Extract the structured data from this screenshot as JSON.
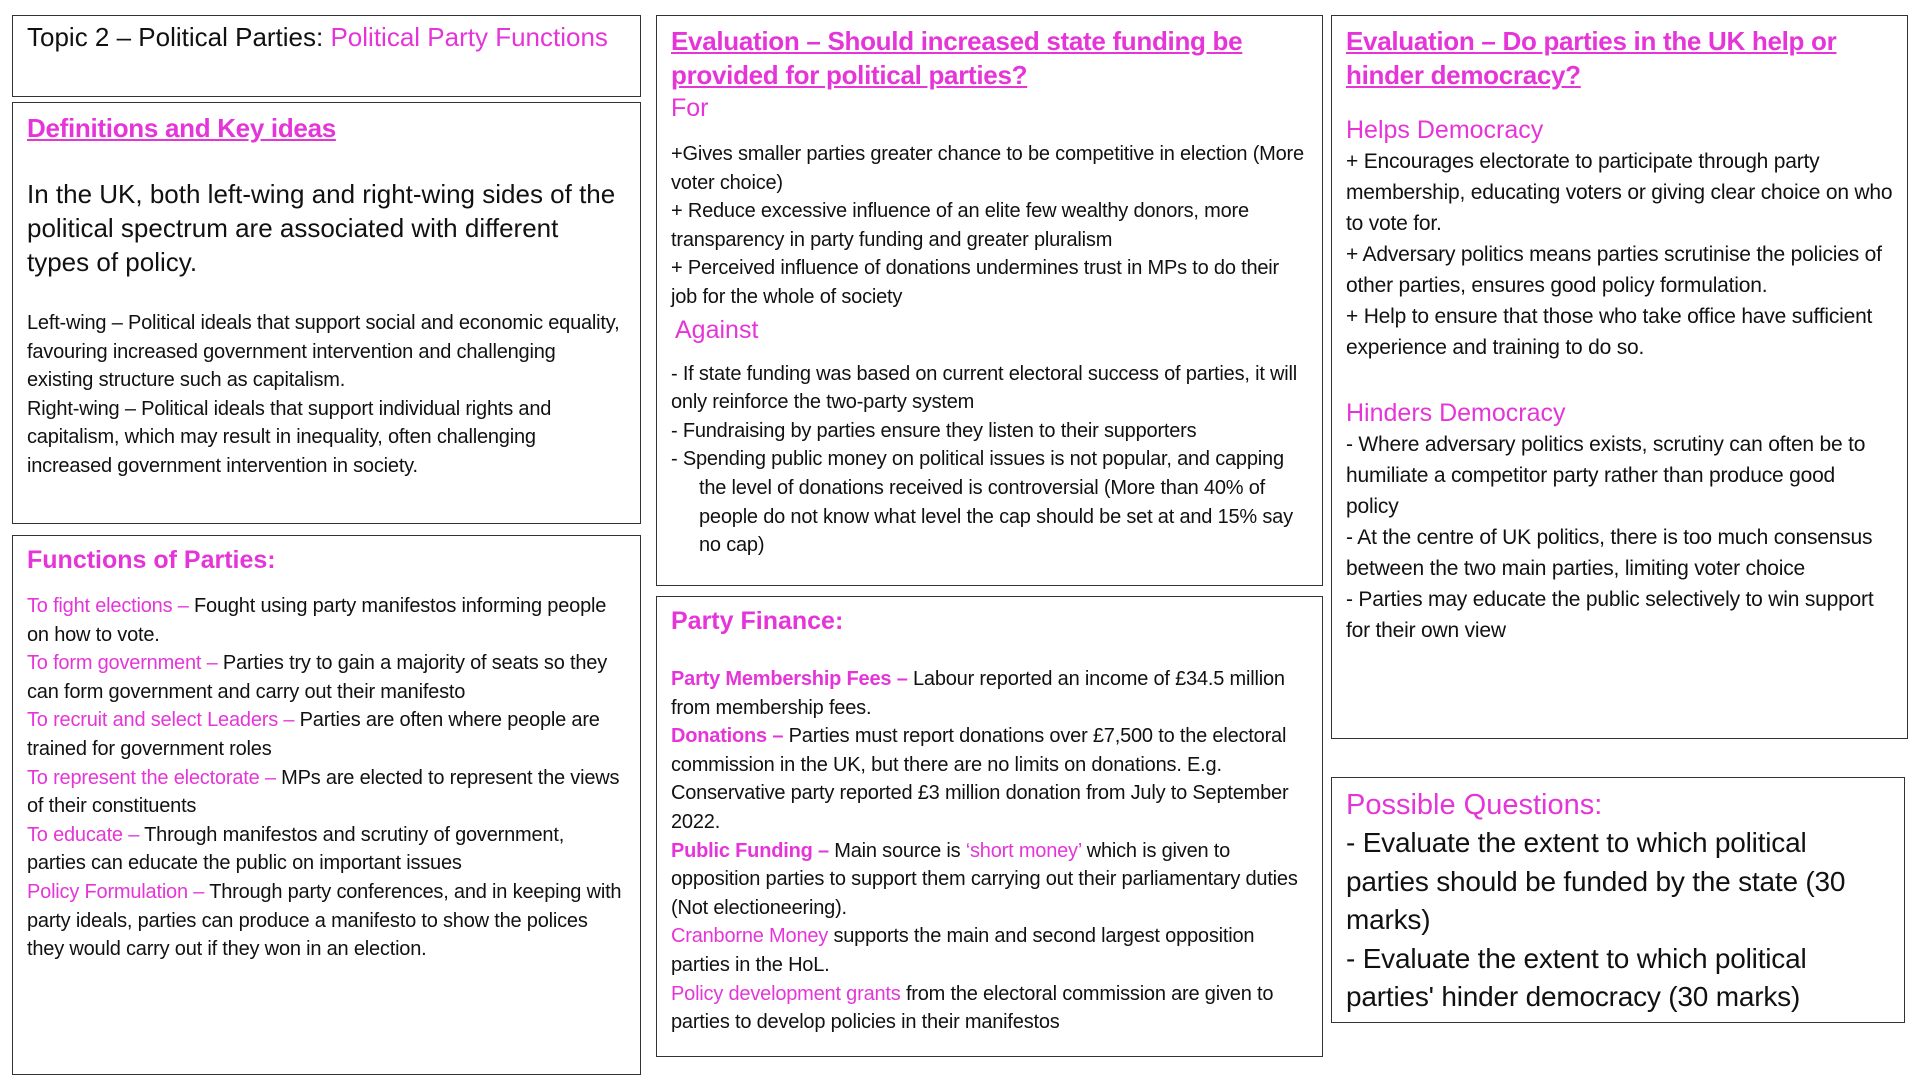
{
  "title": {
    "prefix": "Topic 2 – Political Parties: ",
    "highlight": "Political Party Functions"
  },
  "definitions": {
    "heading": "Definitions and Key ideas",
    "intro": "In the UK, both left-wing and right-wing sides of the political spectrum are associated with different types of policy.",
    "left": "Left-wing – Political ideals that support social and economic equality, favouring increased government intervention and challenging existing structure such as capitalism.",
    "right": "Right-wing – Political ideals that support individual rights and capitalism, which may result in inequality, often challenging increased government intervention in society."
  },
  "functions": {
    "heading": "Functions of Parties:",
    "items": [
      {
        "label": "To fight elections – ",
        "text": "Fought using party manifestos informing people on how to vote."
      },
      {
        "label": "To form government – ",
        "text": "Parties try to gain a majority of seats so they can form government and carry out their manifesto"
      },
      {
        "label": "To recruit and select Leaders – ",
        "text": "Parties are often where people are trained for government roles"
      },
      {
        "label": "To represent the electorate – ",
        "text": "MPs are elected to represent the views of their constituents"
      },
      {
        "label": "To educate – ",
        "text": "Through manifestos and scrutiny of government, parties can educate the public on important issues"
      },
      {
        "label": "Policy Formulation – ",
        "text": "Through party conferences, and in keeping with party ideals, parties can produce a manifesto to show the polices they would carry out if they won in an election."
      }
    ]
  },
  "funding": {
    "heading": "Evaluation – Should increased state funding be provided for political parties?",
    "for_label": "For",
    "for": [
      "+Gives smaller parties greater chance to be competitive in election (More voter choice)",
      "+ Reduce excessive influence of an elite few wealthy donors, more transparency in party funding and greater pluralism",
      "+ Perceived influence of donations undermines trust in MPs to do their job for the whole of society"
    ],
    "against_label": "Against",
    "against": [
      "- If state funding was based on current electoral success of parties, it will only reinforce the two-party system",
      "- Fundraising by parties ensure they listen to their supporters",
      "-   Spending public money on political issues is not popular, and capping the level of donations received is controversial (More than 40% of people do not know what level the cap should be set at and 15% say no cap)"
    ]
  },
  "finance": {
    "heading": "Party Finance:",
    "items": [
      {
        "label": "Party Membership Fees – ",
        "bold": true,
        "text": "Labour reported an income of £34.5 million from membership fees."
      },
      {
        "label": "Donations – ",
        "bold": true,
        "text": "Parties must report donations over £7,500 to the electoral commission in the UK, but there are no limits on donations. E.g. Conservative party reported £3 million donation from July to September 2022."
      },
      {
        "label": "Public Funding – ",
        "bold": true,
        "text": "Main source is ",
        "quote": "‘short money’",
        "text2": " which is given to opposition parties to support them carrying out their parliamentary duties (Not electioneering)."
      },
      {
        "label": "Cranborne Money ",
        "bold": false,
        "text": "supports the main and second largest opposition parties in the HoL."
      },
      {
        "label": "Policy development grants ",
        "bold": false,
        "text": "from the electoral commission are given to parties to develop policies in their manifestos"
      }
    ]
  },
  "democracy": {
    "heading": "Evaluation – Do parties in the UK help or hinder democracy?",
    "helps_label": "Helps Democracy",
    "helps": [
      "+ Encourages electorate to participate through party membership, educating voters or giving clear choice on who to vote for.",
      "+ Adversary politics means parties scrutinise the policies of other parties, ensures good policy formulation.",
      "+ Help to ensure that those who take office have sufficient experience and training to do so."
    ],
    "hinders_label": "Hinders Democracy",
    "hinders": [
      "- Where adversary politics exists, scrutiny can often be to humiliate a competitor party rather than produce good policy",
      "- At the centre of UK politics, there is too much consensus between the two main parties, limiting voter choice",
      "- Parties may educate the public selectively to win support for their own view"
    ]
  },
  "questions": {
    "heading": "Possible Questions:",
    "items": [
      "- Evaluate the extent to which political parties should be funded by the state (30 marks)",
      "- Evaluate the extent to which political parties' hinder democracy (30 marks)"
    ]
  },
  "colors": {
    "accent": "#e535d8",
    "text": "#111111",
    "border": "#333333"
  }
}
